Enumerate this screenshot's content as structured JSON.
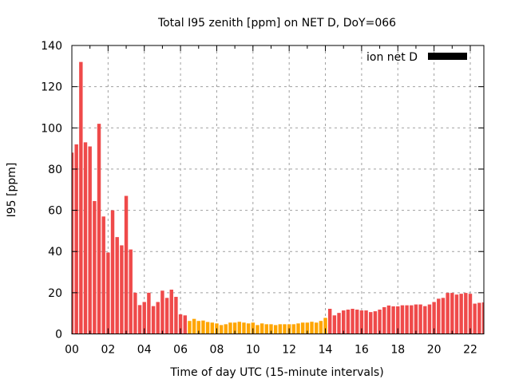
{
  "chart_data": {
    "type": "bar",
    "title": "Total I95 zenith [ppm] on NET D, DoY=066",
    "xlabel": "Time of day UTC (15-minute intervals)",
    "ylabel": "I95 [ppm]",
    "xlim": [
      0,
      22.75
    ],
    "ylim": [
      0,
      140
    ],
    "grid": true,
    "legend": {
      "placement": "top-right",
      "entries": [
        {
          "label": "ion net D",
          "color": "#000000"
        }
      ]
    },
    "x_ticks": [
      0,
      2,
      4,
      6,
      8,
      10,
      12,
      14,
      16,
      18,
      20,
      22
    ],
    "x_tick_labels": [
      "00",
      "02",
      "04",
      "06",
      "08",
      "10",
      "12",
      "14",
      "16",
      "18",
      "20",
      "22"
    ],
    "y_ticks": [
      0,
      20,
      40,
      60,
      80,
      100,
      120,
      140
    ],
    "y_tick_labels": [
      "0",
      "20",
      "40",
      "60",
      "80",
      "100",
      "120",
      "140"
    ],
    "interval_hours": 0.25,
    "colors": {
      "high": "#ef4a4a",
      "low": "#ffa500",
      "grid": "#a0a0a0"
    },
    "series": [
      {
        "name": "ion net D",
        "values": [
          88,
          92,
          132,
          93,
          91,
          64.5,
          102,
          57,
          39.5,
          60,
          47,
          43,
          67,
          41,
          20,
          14,
          15.5,
          20,
          13.5,
          15.5,
          21,
          17.5,
          21.5,
          18,
          9.5,
          9,
          6.3,
          7.3,
          6.3,
          6.5,
          5.8,
          5.5,
          5.1,
          4.3,
          4.7,
          5.5,
          5.5,
          5.9,
          5.5,
          5.1,
          5.5,
          4.3,
          5.1,
          4.7,
          4.7,
          4.3,
          4.7,
          4.7,
          4.7,
          4.7,
          5.1,
          5.5,
          5.5,
          5.9,
          5.5,
          6.3,
          7.8,
          12.2,
          9.0,
          10.2,
          11.4,
          11.8,
          12.2,
          11.8,
          11.4,
          11.4,
          10.6,
          11.0,
          11.8,
          13.0,
          13.8,
          13.4,
          13.4,
          13.9,
          13.9,
          13.9,
          14.3,
          14.3,
          13.5,
          14.3,
          15.5,
          17.1,
          17.5,
          19.9,
          19.9,
          19.1,
          19.5,
          19.9,
          19.5,
          14.7,
          15.1,
          15.3
        ],
        "category": [
          "high",
          "high",
          "high",
          "high",
          "high",
          "high",
          "high",
          "high",
          "high",
          "high",
          "high",
          "high",
          "high",
          "high",
          "high",
          "high",
          "high",
          "high",
          "high",
          "high",
          "high",
          "high",
          "high",
          "high",
          "high",
          "high",
          "low",
          "low",
          "low",
          "low",
          "low",
          "low",
          "low",
          "low",
          "low",
          "low",
          "low",
          "low",
          "low",
          "low",
          "low",
          "low",
          "low",
          "low",
          "low",
          "low",
          "low",
          "low",
          "low",
          "low",
          "low",
          "low",
          "low",
          "low",
          "low",
          "low",
          "low",
          "high",
          "high",
          "high",
          "high",
          "high",
          "high",
          "high",
          "high",
          "high",
          "high",
          "high",
          "high",
          "high",
          "high",
          "high",
          "high",
          "high",
          "high",
          "high",
          "high",
          "high",
          "high",
          "high",
          "high",
          "high",
          "high",
          "high",
          "high",
          "high",
          "high",
          "high",
          "high",
          "high",
          "high",
          "high"
        ]
      }
    ]
  }
}
